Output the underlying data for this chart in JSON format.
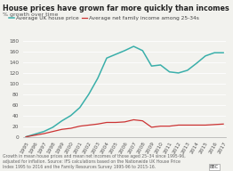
{
  "title": "House prices have grown far more quickly than incomes",
  "ylabel": "% growth over time",
  "years": [
    "1995",
    "1996",
    "1997",
    "1998",
    "1999",
    "2000",
    "2001",
    "2002",
    "2003",
    "2004",
    "2005",
    "2006",
    "2007",
    "2008",
    "2009",
    "2010",
    "2011",
    "2012",
    "2013",
    "2014",
    "2015",
    "2016",
    "2017"
  ],
  "house_price": [
    0,
    5,
    10,
    18,
    30,
    40,
    55,
    80,
    110,
    148,
    155,
    162,
    170,
    162,
    133,
    135,
    122,
    120,
    125,
    138,
    152,
    158,
    158
  ],
  "income": [
    0,
    3,
    6,
    10,
    14,
    16,
    20,
    22,
    24,
    27,
    27,
    28,
    32,
    30,
    18,
    20,
    20,
    22,
    22,
    22,
    22,
    23,
    24
  ],
  "house_color": "#3aafaa",
  "income_color": "#cc3333",
  "legend_house": "Average UK house price",
  "legend_income": "Average net family income among 25-34s",
  "footnote": "Growth in mean house prices and mean net incomes of those aged 25–34 since 1995-96,\nadjusted for inflation. Source: IFS calculations based on the Nationwide UK House Price\nIndex 1995 to 2016 and the Family Resources Survey 1995-96 to 2015-16.",
  "ylim": [
    0,
    180
  ],
  "yticks": [
    0,
    20,
    40,
    60,
    80,
    100,
    120,
    140,
    160,
    180
  ],
  "background_color": "#f2f2ee",
  "title_fontsize": 5.8,
  "subtitle_fontsize": 4.5,
  "axis_fontsize": 4.2,
  "legend_fontsize": 4.2,
  "footnote_fontsize": 3.3
}
